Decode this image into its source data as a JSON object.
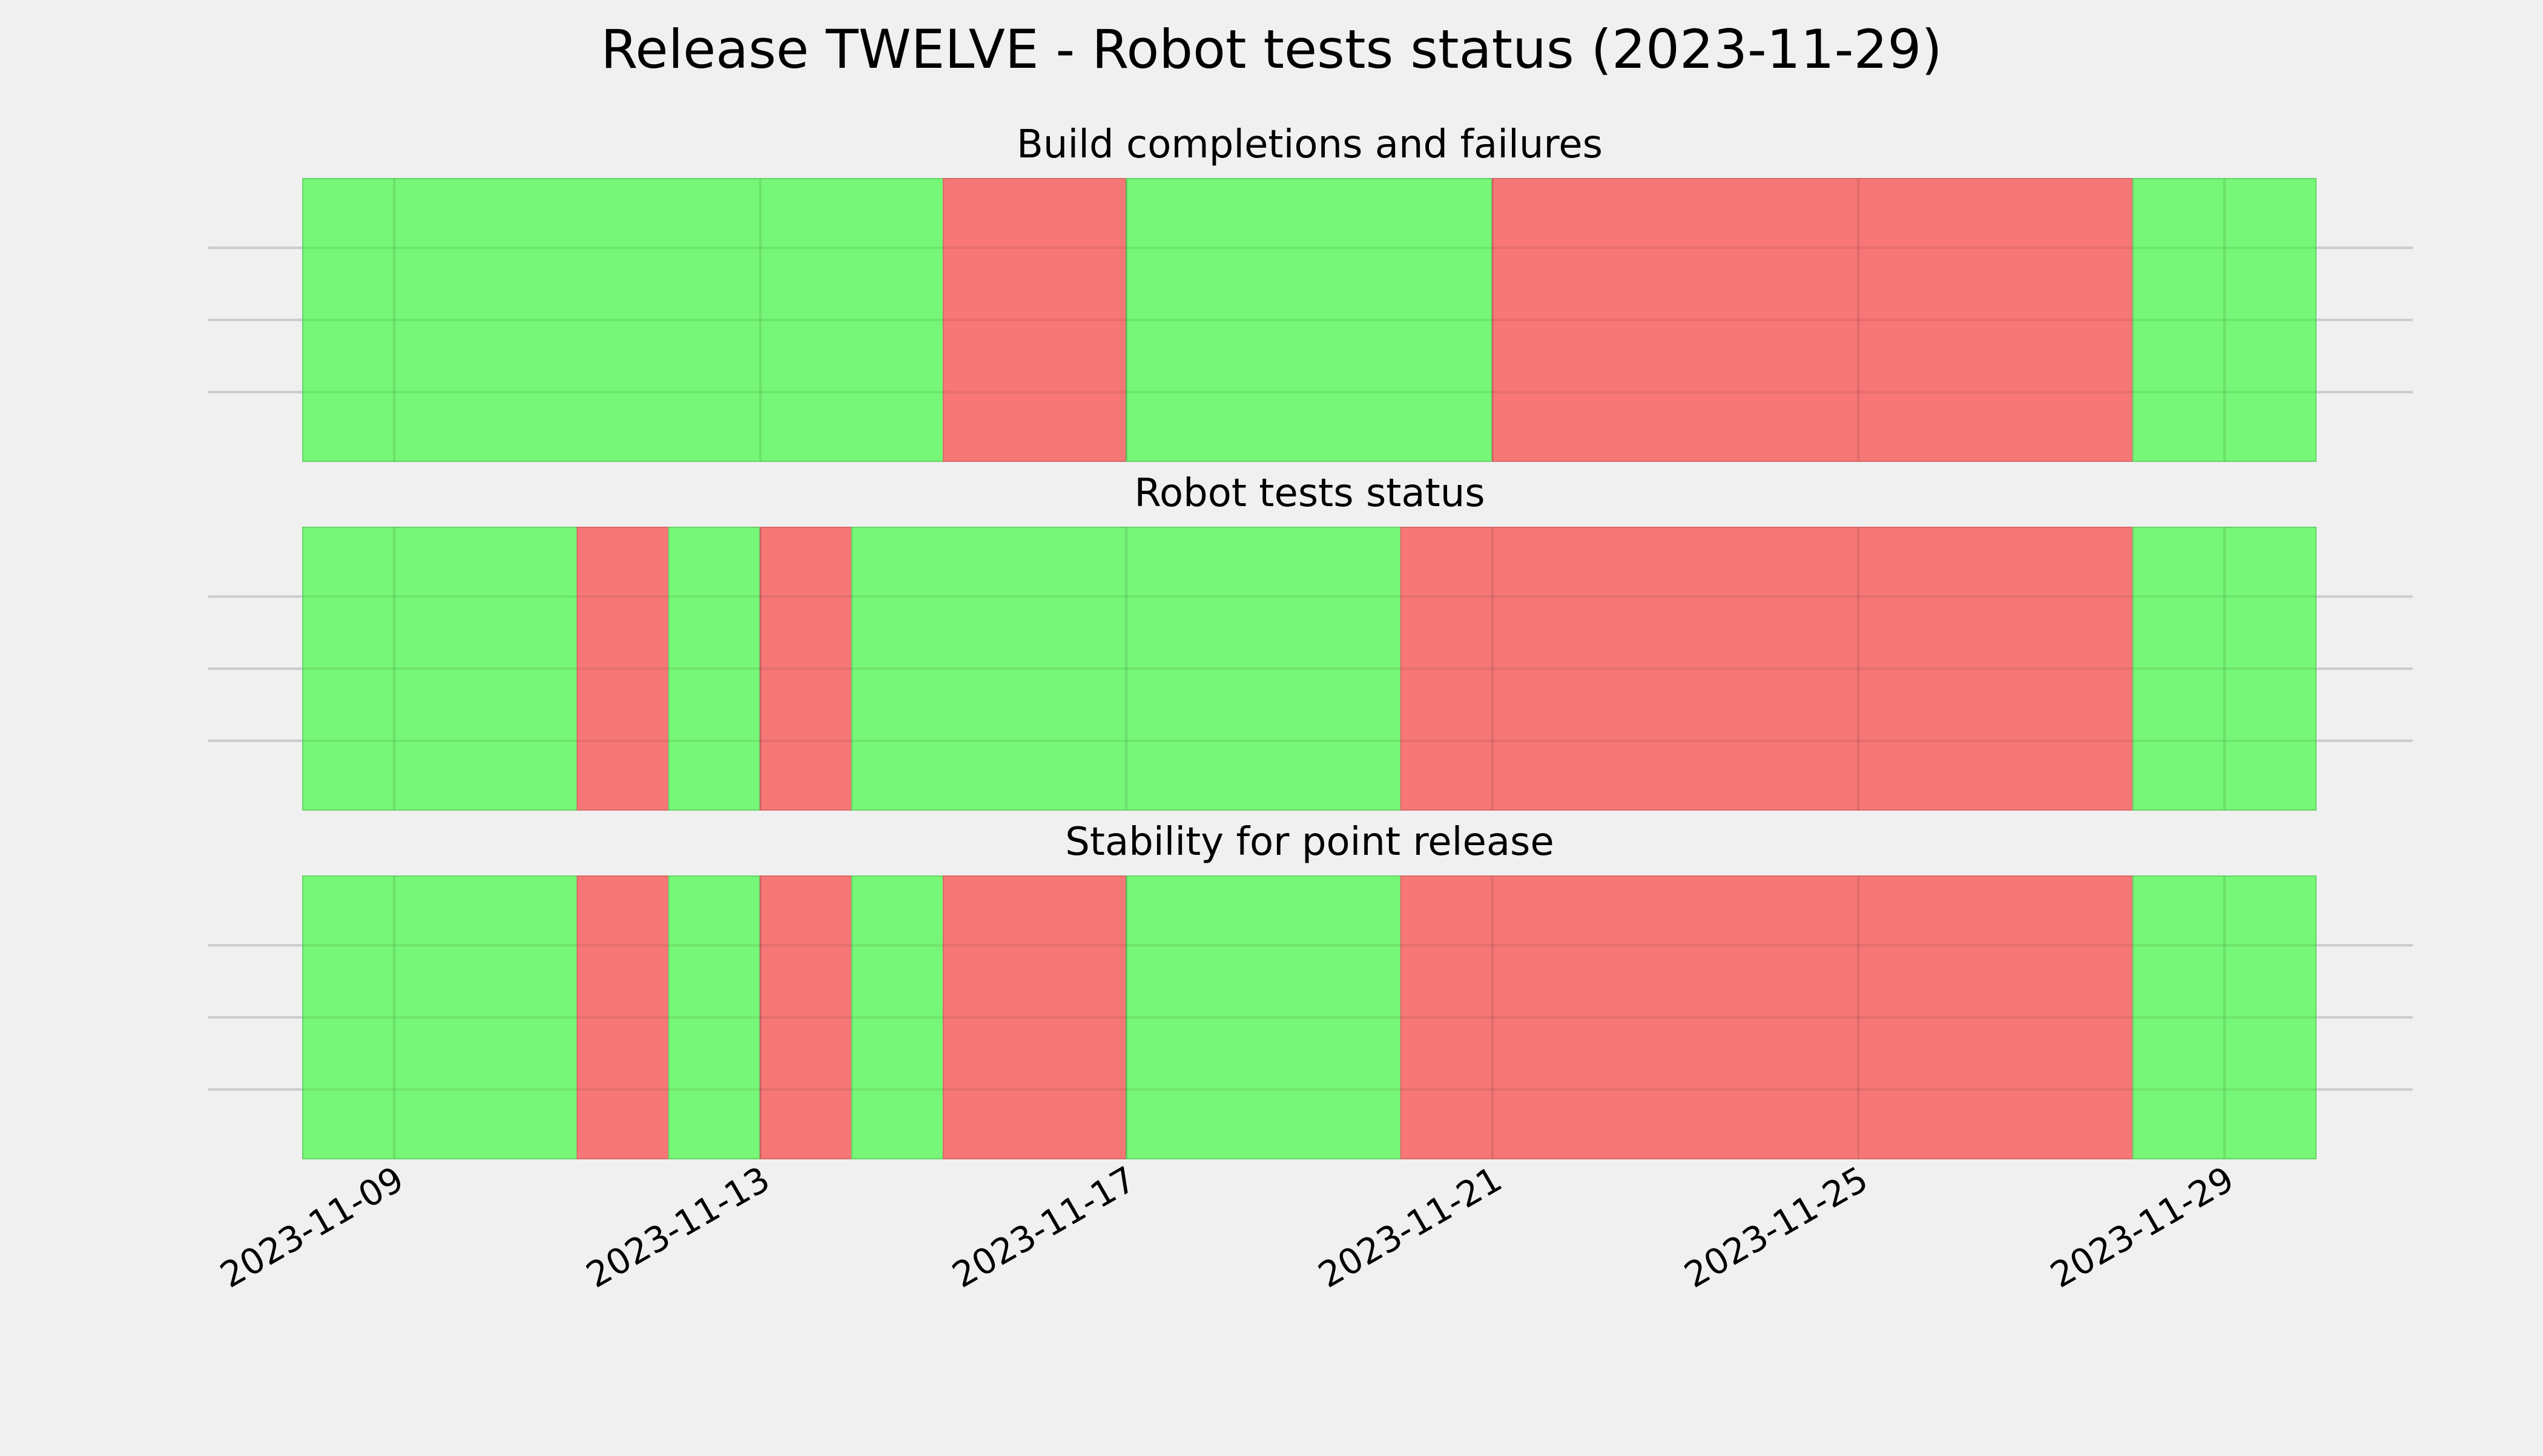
{
  "title": "Release TWELVE - Robot tests status (2023-11-29)",
  "colors": {
    "pass": "#77f777",
    "fail": "#f77777",
    "background": "#f0f0f0",
    "grid": "#cbcbcb"
  },
  "chart_data": {
    "type": "timeline",
    "xlabel": "",
    "ylabel": "",
    "x_range": [
      "2023-11-08",
      "2023-11-30"
    ],
    "x_ticks": [
      "2023-11-09",
      "2023-11-13",
      "2023-11-17",
      "2023-11-21",
      "2023-11-25",
      "2023-11-29"
    ],
    "grid": true,
    "panels": [
      {
        "title": "Build completions and failures",
        "periods": [
          {
            "start": "2023-11-08",
            "end": "2023-11-15",
            "status": "pass"
          },
          {
            "start": "2023-11-15",
            "end": "2023-11-17",
            "status": "fail"
          },
          {
            "start": "2023-11-17",
            "end": "2023-11-21",
            "status": "pass"
          },
          {
            "start": "2023-11-21",
            "end": "2023-11-28",
            "status": "fail"
          },
          {
            "start": "2023-11-28",
            "end": "2023-11-30",
            "status": "pass"
          }
        ]
      },
      {
        "title": "Robot tests status",
        "periods": [
          {
            "start": "2023-11-08",
            "end": "2023-11-11",
            "status": "pass"
          },
          {
            "start": "2023-11-11",
            "end": "2023-11-12",
            "status": "fail"
          },
          {
            "start": "2023-11-12",
            "end": "2023-11-13",
            "status": "pass"
          },
          {
            "start": "2023-11-13",
            "end": "2023-11-14",
            "status": "fail"
          },
          {
            "start": "2023-11-14",
            "end": "2023-11-20",
            "status": "pass"
          },
          {
            "start": "2023-11-20",
            "end": "2023-11-28",
            "status": "fail"
          },
          {
            "start": "2023-11-28",
            "end": "2023-11-30",
            "status": "pass"
          }
        ]
      },
      {
        "title": "Stability for point release",
        "periods": [
          {
            "start": "2023-11-08",
            "end": "2023-11-11",
            "status": "pass"
          },
          {
            "start": "2023-11-11",
            "end": "2023-11-12",
            "status": "fail"
          },
          {
            "start": "2023-11-12",
            "end": "2023-11-13",
            "status": "pass"
          },
          {
            "start": "2023-11-13",
            "end": "2023-11-14",
            "status": "fail"
          },
          {
            "start": "2023-11-14",
            "end": "2023-11-15",
            "status": "pass"
          },
          {
            "start": "2023-11-15",
            "end": "2023-11-17",
            "status": "fail"
          },
          {
            "start": "2023-11-17",
            "end": "2023-11-20",
            "status": "pass"
          },
          {
            "start": "2023-11-20",
            "end": "2023-11-28",
            "status": "fail"
          },
          {
            "start": "2023-11-28",
            "end": "2023-11-30",
            "status": "pass"
          }
        ]
      }
    ]
  }
}
